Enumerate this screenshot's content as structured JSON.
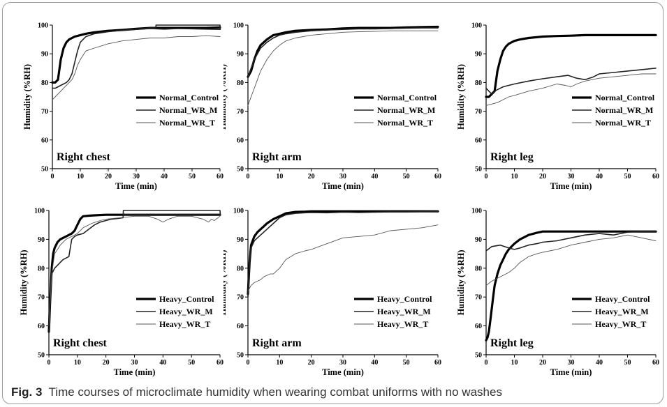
{
  "caption": {
    "label": "Fig. 3",
    "text": "Time courses of microclimate humidity when wearing combat uniforms with no washes"
  },
  "chart_data": [
    {
      "type": "line",
      "panel_label": "Right chest",
      "xlabel": "Time (min)",
      "ylabel": "Humidity (%RH)",
      "xlim": [
        0,
        60
      ],
      "ylim": [
        50,
        100
      ],
      "xticks": [
        0,
        10,
        20,
        30,
        40,
        50,
        60
      ],
      "yticks": [
        50,
        60,
        70,
        80,
        90,
        100
      ],
      "grid": false,
      "legend_position": "center-right",
      "series": [
        {
          "name": "Normal_Control",
          "style": "bold",
          "x": [
            0,
            1,
            2,
            3,
            4,
            5,
            6,
            8,
            10,
            12,
            15,
            20,
            25,
            30,
            35,
            40,
            45,
            50,
            55,
            60
          ],
          "y": [
            80,
            80,
            81,
            88,
            92,
            94,
            95,
            96,
            96.5,
            97,
            97.5,
            98,
            98.3,
            98.7,
            99,
            99,
            99,
            99,
            99,
            99.2
          ]
        },
        {
          "name": "Normal_WR_M",
          "style": "medium",
          "x": [
            0,
            1,
            2,
            3,
            4,
            5,
            6,
            7,
            8,
            9,
            10,
            12,
            15,
            20,
            25,
            30,
            35,
            37,
            37.1,
            60,
            60.1,
            45,
            40,
            35,
            30
          ],
          "y": [
            78,
            78,
            78.5,
            79,
            79.5,
            80,
            81,
            83,
            87,
            91,
            94,
            96,
            97,
            97.7,
            98.2,
            98.5,
            99,
            99,
            100,
            100,
            98.5,
            98.8,
            98.6,
            98.8,
            98.6
          ]
        },
        {
          "name": "Normal_WR_T",
          "style": "thin",
          "x": [
            0,
            1,
            2,
            3,
            4,
            5,
            6,
            7,
            8,
            9,
            10,
            12,
            15,
            20,
            25,
            30,
            35,
            40,
            45,
            50,
            55,
            60
          ],
          "y": [
            74,
            75,
            76,
            77,
            78,
            79,
            80,
            81,
            83,
            86,
            88,
            91,
            92,
            93.5,
            94.5,
            95,
            95.5,
            95.5,
            96,
            96,
            96.3,
            96
          ]
        }
      ]
    },
    {
      "type": "line",
      "panel_label": "Right arm",
      "xlabel": "Time (min)",
      "ylabel": "Humidity (%RH)",
      "xlim": [
        0,
        60
      ],
      "ylim": [
        50,
        100
      ],
      "xticks": [
        0,
        10,
        20,
        30,
        40,
        50,
        60
      ],
      "yticks": [
        50,
        60,
        70,
        80,
        90,
        100
      ],
      "grid": false,
      "legend_position": "center-right",
      "series": [
        {
          "name": "Normal_Control",
          "style": "bold",
          "x": [
            0,
            1,
            2,
            3,
            4,
            5,
            6,
            8,
            10,
            12,
            15,
            20,
            25,
            30,
            35,
            40,
            45,
            50,
            55,
            60
          ],
          "y": [
            82,
            84,
            88,
            91,
            93,
            94,
            95,
            96.5,
            97,
            97.5,
            98,
            98.3,
            98.5,
            98.8,
            99,
            99,
            99,
            99.2,
            99.3,
            99.4
          ]
        },
        {
          "name": "Normal_WR_M",
          "style": "medium",
          "x": [
            0,
            1,
            2,
            3,
            4,
            5,
            6,
            8,
            10,
            12,
            15,
            20,
            25,
            30,
            35,
            40,
            45,
            50,
            55,
            60
          ],
          "y": [
            82,
            85,
            88,
            90,
            92,
            93,
            94,
            95.5,
            96.5,
            97,
            97.5,
            98,
            98.3,
            98.5,
            98.7,
            98.7,
            98.8,
            98.9,
            99,
            99
          ]
        },
        {
          "name": "Normal_WR_T",
          "style": "thin",
          "x": [
            0,
            1,
            2,
            3,
            4,
            5,
            6,
            8,
            10,
            12,
            15,
            20,
            25,
            30,
            35,
            40,
            45,
            50,
            55,
            60
          ],
          "y": [
            72,
            75,
            78,
            81,
            84,
            86,
            88,
            91,
            93,
            94.5,
            95.5,
            96.5,
            97,
            97.5,
            97.7,
            97.8,
            98,
            98,
            98,
            98
          ]
        }
      ]
    },
    {
      "type": "line",
      "panel_label": "Right leg",
      "xlabel": "Time (min)",
      "ylabel": "Humidity (%RH)",
      "xlim": [
        0,
        60
      ],
      "ylim": [
        50,
        100
      ],
      "xticks": [
        0,
        10,
        20,
        30,
        40,
        50,
        60
      ],
      "yticks": [
        50,
        60,
        70,
        80,
        90,
        100
      ],
      "grid": false,
      "legend_position": "center-right",
      "series": [
        {
          "name": "Normal_Control",
          "style": "bold",
          "x": [
            0,
            1,
            2,
            3,
            4,
            5,
            6,
            7,
            8,
            10,
            12,
            15,
            20,
            25,
            30,
            35,
            40,
            45,
            50,
            55,
            60
          ],
          "y": [
            75,
            75,
            76,
            77,
            84,
            88,
            91,
            92.5,
            93.5,
            94.5,
            95,
            95.5,
            96,
            96.2,
            96.3,
            96.5,
            96.5,
            96.5,
            96.5,
            96.5,
            96.5
          ]
        },
        {
          "name": "Normal_WR_M",
          "style": "medium",
          "x": [
            0,
            1,
            2,
            3,
            4,
            5,
            6,
            8,
            10,
            15,
            20,
            25,
            29,
            32,
            35,
            38,
            40,
            45,
            50,
            55,
            60
          ],
          "y": [
            78,
            77,
            76,
            77,
            77.5,
            78,
            78.5,
            79,
            79.5,
            80.5,
            81.3,
            82,
            82.5,
            81.5,
            81,
            82,
            83,
            83.5,
            84,
            84.5,
            85
          ]
        },
        {
          "name": "Normal_WR_T",
          "style": "thin",
          "x": [
            0,
            2,
            4,
            6,
            8,
            10,
            15,
            20,
            25,
            28,
            30,
            32,
            35,
            40,
            45,
            50,
            55,
            60
          ],
          "y": [
            72,
            72.5,
            73,
            74,
            75,
            75.5,
            77,
            78,
            79.5,
            79,
            78.5,
            79.5,
            80.5,
            81.5,
            82,
            82.5,
            83,
            83
          ]
        }
      ]
    },
    {
      "type": "line",
      "panel_label": "Right chest",
      "xlabel": "Time (min)",
      "ylabel": "Humidity (%RH)",
      "xlim": [
        0,
        60
      ],
      "ylim": [
        50,
        100
      ],
      "xticks": [
        0,
        10,
        20,
        30,
        40,
        50,
        60
      ],
      "yticks": [
        50,
        60,
        70,
        80,
        90,
        100
      ],
      "grid": false,
      "legend_position": "bottom-right",
      "series": [
        {
          "name": "Heavy_Control",
          "style": "bold",
          "x": [
            0,
            0.5,
            1,
            1.5,
            2,
            3,
            4,
            5,
            6,
            7,
            8,
            9,
            10,
            11,
            12,
            14,
            16,
            20,
            25,
            30,
            40,
            50,
            60
          ],
          "y": [
            58,
            70,
            80,
            85,
            87,
            89,
            90,
            90.5,
            91,
            91.5,
            92,
            93,
            95,
            97,
            98,
            98.2,
            98.3,
            98.5,
            98.5,
            98.5,
            98.5,
            98.5,
            98.5
          ]
        },
        {
          "name": "Heavy_WR_M",
          "style": "medium",
          "x": [
            0,
            0.5,
            1,
            2,
            3,
            4,
            5,
            6,
            7,
            8,
            9,
            10,
            12,
            14,
            16,
            18,
            20,
            22,
            24,
            26,
            26.1,
            60,
            60.1,
            45,
            40,
            30,
            26
          ],
          "y": [
            58,
            72,
            78,
            80,
            81,
            82,
            83,
            83.5,
            84,
            90,
            91,
            91.5,
            92,
            93.5,
            95,
            96,
            96.5,
            97,
            97.2,
            97.5,
            100,
            100,
            98.5,
            98.5,
            98.5,
            98.5,
            98.5
          ]
        },
        {
          "name": "Heavy_WR_T",
          "style": "thin",
          "x": [
            0,
            1,
            2,
            4,
            6,
            8,
            10,
            12,
            15,
            18,
            20,
            25,
            30,
            35,
            38,
            40,
            42,
            45,
            50,
            54,
            55,
            56,
            57,
            58,
            60
          ],
          "y": [
            60,
            78,
            85,
            88,
            90,
            91,
            92,
            94,
            95.5,
            96.5,
            97,
            97.5,
            98,
            98,
            97,
            96,
            97,
            98,
            98,
            97,
            96.5,
            96,
            97,
            96.5,
            98
          ]
        }
      ]
    },
    {
      "type": "line",
      "panel_label": "Right arm",
      "xlabel": "Time (min)",
      "ylabel": "Humidity (%RH)",
      "xlim": [
        0,
        60
      ],
      "ylim": [
        50,
        100
      ],
      "xticks": [
        0,
        10,
        20,
        30,
        40,
        50,
        60
      ],
      "yticks": [
        50,
        60,
        70,
        80,
        90,
        100
      ],
      "grid": false,
      "legend_position": "bottom-right",
      "series": [
        {
          "name": "Heavy_Control",
          "style": "bold",
          "x": [
            0,
            0.5,
            1,
            2,
            3,
            4,
            5,
            6,
            8,
            10,
            12,
            15,
            18,
            20,
            25,
            30,
            40,
            50,
            60
          ],
          "y": [
            71,
            82,
            88,
            91,
            92.5,
            93.5,
            94.5,
            95.5,
            97,
            98,
            99,
            99.5,
            99.6,
            99.7,
            99.7,
            99.7,
            99.7,
            99.7,
            99.7
          ]
        },
        {
          "name": "Heavy_WR_M",
          "style": "medium",
          "x": [
            0,
            0.5,
            1,
            2,
            3,
            4,
            5,
            6,
            8,
            10,
            12,
            15,
            18,
            20,
            25,
            30,
            35,
            40,
            45,
            50,
            55,
            60
          ],
          "y": [
            70,
            82,
            87,
            89.5,
            90.5,
            91.5,
            92.5,
            93.5,
            95.5,
            97.5,
            98.5,
            99,
            99.2,
            99.3,
            99.2,
            99.4,
            99.3,
            99.4,
            99.5,
            99.5,
            99.6,
            99.7
          ]
        },
        {
          "name": "Heavy_WR_T",
          "style": "thin",
          "x": [
            0,
            1,
            2,
            3,
            4,
            5,
            6,
            7,
            8,
            9,
            10,
            12,
            15,
            18,
            20,
            25,
            30,
            35,
            40,
            45,
            50,
            55,
            60
          ],
          "y": [
            72,
            74,
            75,
            75.5,
            76,
            77,
            77.5,
            78,
            78,
            79,
            80,
            83,
            85,
            86,
            86.5,
            88.5,
            90.5,
            91,
            91.5,
            93,
            93.5,
            94,
            95
          ]
        }
      ]
    },
    {
      "type": "line",
      "panel_label": "Right leg",
      "xlabel": "Time (min)",
      "ylabel": "Humidity (%RH)",
      "xlim": [
        0,
        60
      ],
      "ylim": [
        50,
        100
      ],
      "xticks": [
        0,
        10,
        20,
        30,
        40,
        50,
        60
      ],
      "yticks": [
        50,
        60,
        70,
        80,
        90,
        100
      ],
      "grid": false,
      "legend_position": "bottom-right",
      "series": [
        {
          "name": "Heavy_Control",
          "style": "bold",
          "x": [
            0,
            0.5,
            1,
            1.5,
            2,
            2.5,
            3,
            4,
            5,
            6,
            7,
            8,
            10,
            12,
            15,
            18,
            20,
            22,
            25,
            30,
            40,
            50,
            60
          ],
          "y": [
            55,
            56,
            58,
            62,
            66,
            70,
            74,
            78,
            81,
            83,
            85,
            86.5,
            88.5,
            90,
            91.5,
            92.3,
            92.7,
            92.7,
            92.7,
            92.7,
            92.7,
            92.7,
            92.7
          ]
        },
        {
          "name": "Heavy_WR_M",
          "style": "medium",
          "x": [
            0,
            2,
            5,
            8,
            10,
            12,
            15,
            18,
            20,
            25,
            30,
            35,
            40,
            45,
            50,
            55,
            60
          ],
          "y": [
            86,
            87.5,
            88,
            87,
            86.5,
            87,
            88,
            88.5,
            89,
            89.5,
            90.5,
            91.5,
            92,
            91.5,
            92.5,
            92.7,
            92.7
          ]
        },
        {
          "name": "Heavy_WR_T",
          "style": "thin",
          "x": [
            0,
            2,
            4,
            6,
            8,
            10,
            12,
            15,
            18,
            20,
            25,
            30,
            35,
            40,
            45,
            50,
            55,
            60
          ],
          "y": [
            74,
            75.5,
            76.5,
            77.5,
            78.5,
            80,
            82,
            84,
            85,
            85.5,
            86.5,
            88,
            89,
            90,
            90.5,
            91.5,
            90.5,
            89.5
          ]
        }
      ]
    }
  ]
}
